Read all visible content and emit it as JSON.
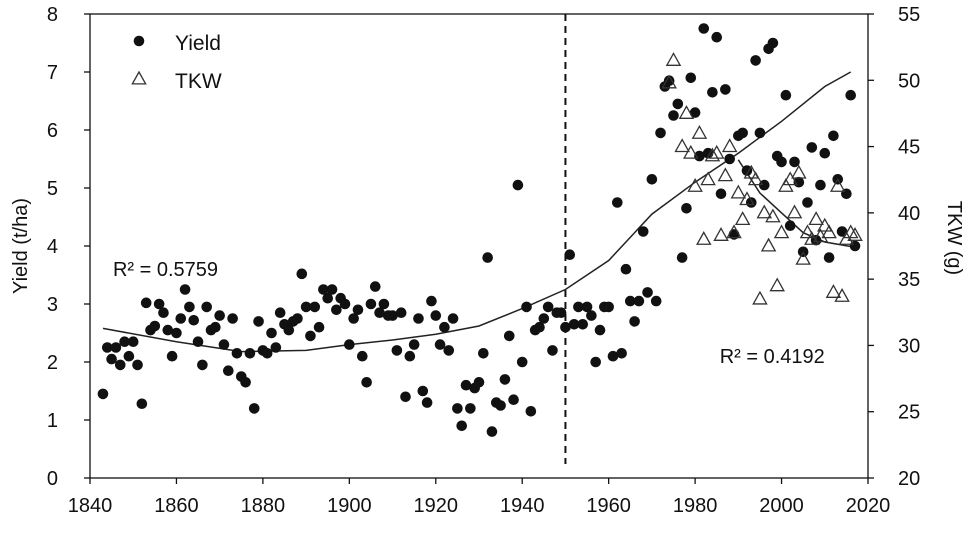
{
  "chart_data": {
    "type": "scatter",
    "x_axis": {
      "min": 1840,
      "max": 2020,
      "ticks": [
        1840,
        1860,
        1880,
        1900,
        1920,
        1940,
        1960,
        1980,
        2000,
        2020
      ]
    },
    "y_left": {
      "label": "Yield (t/ha)",
      "min": 0,
      "max": 8,
      "ticks": [
        0,
        1,
        2,
        3,
        4,
        5,
        6,
        7,
        8
      ]
    },
    "y_right": {
      "label": "TKW (g)",
      "min": 20,
      "max": 55,
      "ticks": [
        20,
        25,
        30,
        35,
        40,
        45,
        50,
        55
      ]
    },
    "legend": {
      "placement": "top-left",
      "items": [
        {
          "name": "Yield",
          "marker": "filled-circle"
        },
        {
          "name": "TKW",
          "marker": "open-triangle"
        }
      ]
    },
    "reference_line": {
      "x": 1950,
      "style": "dashed"
    },
    "annotations": [
      {
        "text": "R² = 0.5759",
        "near_x": 1843,
        "near_y": 3.6
      },
      {
        "text": "R² = 0.4192",
        "near_x": 1988,
        "near_y": 2.1
      }
    ],
    "series": [
      {
        "name": "Yield",
        "axis": "left",
        "points": [
          [
            1843,
            1.45
          ],
          [
            1844,
            2.25
          ],
          [
            1845,
            2.05
          ],
          [
            1846,
            2.25
          ],
          [
            1847,
            1.95
          ],
          [
            1848,
            2.35
          ],
          [
            1849,
            2.1
          ],
          [
            1850,
            2.35
          ],
          [
            1851,
            1.95
          ],
          [
            1852,
            1.28
          ],
          [
            1853,
            3.02
          ],
          [
            1854,
            2.55
          ],
          [
            1855,
            2.62
          ],
          [
            1856,
            3.0
          ],
          [
            1857,
            2.85
          ],
          [
            1858,
            2.55
          ],
          [
            1859,
            2.1
          ],
          [
            1860,
            2.5
          ],
          [
            1861,
            2.75
          ],
          [
            1862,
            3.25
          ],
          [
            1863,
            2.95
          ],
          [
            1864,
            2.72
          ],
          [
            1865,
            2.35
          ],
          [
            1866,
            1.95
          ],
          [
            1867,
            2.95
          ],
          [
            1868,
            2.55
          ],
          [
            1869,
            2.6
          ],
          [
            1870,
            2.8
          ],
          [
            1871,
            2.3
          ],
          [
            1872,
            1.85
          ],
          [
            1873,
            2.75
          ],
          [
            1874,
            2.15
          ],
          [
            1875,
            1.75
          ],
          [
            1876,
            1.65
          ],
          [
            1877,
            2.15
          ],
          [
            1878,
            1.2
          ],
          [
            1879,
            2.7
          ],
          [
            1880,
            2.2
          ],
          [
            1881,
            2.15
          ],
          [
            1882,
            2.5
          ],
          [
            1883,
            2.25
          ],
          [
            1884,
            2.85
          ],
          [
            1885,
            2.65
          ],
          [
            1886,
            2.55
          ],
          [
            1887,
            2.7
          ],
          [
            1888,
            2.75
          ],
          [
            1889,
            3.52
          ],
          [
            1890,
            2.95
          ],
          [
            1891,
            2.45
          ],
          [
            1892,
            2.95
          ],
          [
            1893,
            2.6
          ],
          [
            1894,
            3.25
          ],
          [
            1895,
            3.1
          ],
          [
            1896,
            3.25
          ],
          [
            1897,
            2.9
          ],
          [
            1898,
            3.1
          ],
          [
            1899,
            3.0
          ],
          [
            1900,
            2.3
          ],
          [
            1901,
            2.75
          ],
          [
            1902,
            2.9
          ],
          [
            1903,
            2.1
          ],
          [
            1904,
            1.65
          ],
          [
            1905,
            3.0
          ],
          [
            1906,
            3.3
          ],
          [
            1907,
            2.85
          ],
          [
            1908,
            3.0
          ],
          [
            1909,
            2.8
          ],
          [
            1910,
            2.8
          ],
          [
            1911,
            2.2
          ],
          [
            1912,
            2.85
          ],
          [
            1913,
            1.4
          ],
          [
            1914,
            2.1
          ],
          [
            1915,
            2.3
          ],
          [
            1916,
            2.75
          ],
          [
            1917,
            1.5
          ],
          [
            1918,
            1.3
          ],
          [
            1919,
            3.05
          ],
          [
            1920,
            2.8
          ],
          [
            1921,
            2.3
          ],
          [
            1922,
            2.6
          ],
          [
            1923,
            2.2
          ],
          [
            1924,
            2.75
          ],
          [
            1925,
            1.2
          ],
          [
            1926,
            0.9
          ],
          [
            1927,
            1.6
          ],
          [
            1928,
            1.2
          ],
          [
            1929,
            1.55
          ],
          [
            1930,
            1.65
          ],
          [
            1931,
            2.15
          ],
          [
            1932,
            3.8
          ],
          [
            1933,
            0.8
          ],
          [
            1934,
            1.3
          ],
          [
            1935,
            1.25
          ],
          [
            1936,
            1.7
          ],
          [
            1937,
            2.45
          ],
          [
            1938,
            1.35
          ],
          [
            1939,
            5.05
          ],
          [
            1940,
            2.0
          ],
          [
            1941,
            2.95
          ],
          [
            1942,
            1.15
          ],
          [
            1943,
            2.55
          ],
          [
            1944,
            2.6
          ],
          [
            1945,
            2.75
          ],
          [
            1946,
            2.95
          ],
          [
            1947,
            2.2
          ],
          [
            1948,
            2.85
          ],
          [
            1949,
            2.85
          ],
          [
            1950,
            2.6
          ],
          [
            1951,
            3.85
          ],
          [
            1952,
            2.65
          ],
          [
            1953,
            2.95
          ],
          [
            1954,
            2.65
          ],
          [
            1955,
            2.95
          ],
          [
            1956,
            2.8
          ],
          [
            1957,
            2.0
          ],
          [
            1958,
            2.55
          ],
          [
            1959,
            2.95
          ],
          [
            1960,
            2.95
          ],
          [
            1961,
            2.1
          ],
          [
            1962,
            4.75
          ],
          [
            1963,
            2.15
          ],
          [
            1964,
            3.6
          ],
          [
            1965,
            3.05
          ],
          [
            1966,
            2.7
          ],
          [
            1967,
            3.05
          ],
          [
            1968,
            4.25
          ],
          [
            1969,
            3.2
          ],
          [
            1970,
            5.15
          ],
          [
            1971,
            3.05
          ],
          [
            1972,
            5.95
          ],
          [
            1973,
            6.75
          ],
          [
            1974,
            6.85
          ],
          [
            1975,
            6.25
          ],
          [
            1976,
            6.45
          ],
          [
            1977,
            3.8
          ],
          [
            1978,
            4.65
          ],
          [
            1979,
            6.9
          ],
          [
            1980,
            6.3
          ],
          [
            1981,
            5.55
          ],
          [
            1982,
            7.75
          ],
          [
            1983,
            5.6
          ],
          [
            1984,
            6.65
          ],
          [
            1985,
            7.6
          ],
          [
            1986,
            4.9
          ],
          [
            1987,
            6.7
          ],
          [
            1988,
            5.5
          ],
          [
            1989,
            4.2
          ],
          [
            1990,
            5.9
          ],
          [
            1991,
            5.95
          ],
          [
            1992,
            5.3
          ],
          [
            1993,
            4.75
          ],
          [
            1994,
            7.2
          ],
          [
            1995,
            5.95
          ],
          [
            1996,
            5.05
          ],
          [
            1997,
            7.4
          ],
          [
            1998,
            7.5
          ],
          [
            1999,
            5.55
          ],
          [
            2000,
            5.45
          ],
          [
            2001,
            6.6
          ],
          [
            2002,
            4.35
          ],
          [
            2003,
            5.45
          ],
          [
            2004,
            5.1
          ],
          [
            2005,
            3.9
          ],
          [
            2006,
            4.75
          ],
          [
            2007,
            5.7
          ],
          [
            2008,
            4.1
          ],
          [
            2009,
            5.05
          ],
          [
            2010,
            5.6
          ],
          [
            2011,
            3.8
          ],
          [
            2012,
            5.9
          ],
          [
            2013,
            5.15
          ],
          [
            2014,
            4.25
          ],
          [
            2015,
            4.9
          ],
          [
            2016,
            6.6
          ],
          [
            2017,
            4.0
          ]
        ]
      },
      {
        "name": "TKW",
        "axis": "right",
        "points": [
          [
            1974,
            49.8
          ],
          [
            1975,
            51.5
          ],
          [
            1977,
            45.0
          ],
          [
            1978,
            47.5
          ],
          [
            1979,
            44.5
          ],
          [
            1980,
            42.0
          ],
          [
            1981,
            46.0
          ],
          [
            1982,
            38.0
          ],
          [
            1983,
            42.5
          ],
          [
            1984,
            44.3
          ],
          [
            1985,
            44.5
          ],
          [
            1986,
            38.3
          ],
          [
            1987,
            42.8
          ],
          [
            1988,
            45.0
          ],
          [
            1989,
            38.5
          ],
          [
            1990,
            41.5
          ],
          [
            1991,
            39.5
          ],
          [
            1992,
            41.0
          ],
          [
            1993,
            43.0
          ],
          [
            1994,
            42.5
          ],
          [
            1995,
            33.5
          ],
          [
            1996,
            40.0
          ],
          [
            1997,
            37.5
          ],
          [
            1998,
            39.7
          ],
          [
            1999,
            34.5
          ],
          [
            2000,
            38.5
          ],
          [
            2001,
            42.0
          ],
          [
            2002,
            42.5
          ],
          [
            2003,
            40.0
          ],
          [
            2004,
            43.0
          ],
          [
            2005,
            36.5
          ],
          [
            2006,
            38.5
          ],
          [
            2007,
            38.0
          ],
          [
            2008,
            39.5
          ],
          [
            2009,
            38.2
          ],
          [
            2010,
            39.0
          ],
          [
            2011,
            38.5
          ],
          [
            2012,
            34.0
          ],
          [
            2013,
            42.0
          ],
          [
            2014,
            33.7
          ],
          [
            2015,
            38.0
          ],
          [
            2016,
            38.5
          ],
          [
            2017,
            38.3
          ]
        ]
      }
    ],
    "trendlines": [
      {
        "name": "Yield",
        "axis": "left",
        "points": [
          [
            1843,
            2.58
          ],
          [
            1860,
            2.35
          ],
          [
            1875,
            2.18
          ],
          [
            1890,
            2.2
          ],
          [
            1900,
            2.3
          ],
          [
            1910,
            2.38
          ],
          [
            1920,
            2.48
          ],
          [
            1930,
            2.62
          ],
          [
            1940,
            2.92
          ],
          [
            1950,
            3.25
          ],
          [
            1960,
            3.75
          ],
          [
            1970,
            4.55
          ],
          [
            1980,
            5.1
          ],
          [
            1990,
            5.6
          ],
          [
            2000,
            6.15
          ],
          [
            2010,
            6.75
          ],
          [
            2016,
            7.0
          ]
        ]
      },
      {
        "name": "TKW",
        "axis": "right",
        "points": [
          [
            1990,
            44.0
          ],
          [
            1992,
            43.0
          ],
          [
            1995,
            41.5
          ],
          [
            2000,
            40.0
          ],
          [
            2005,
            38.5
          ],
          [
            2010,
            37.8
          ],
          [
            2017,
            37.4
          ]
        ]
      }
    ]
  }
}
